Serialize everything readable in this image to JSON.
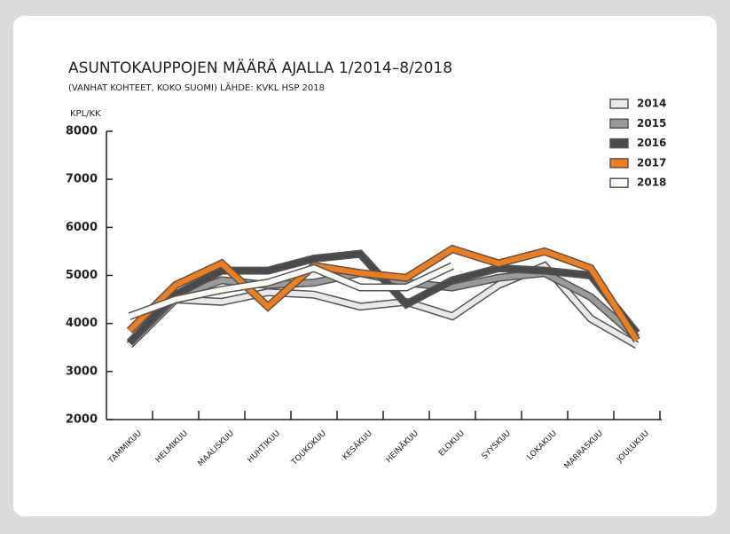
{
  "chart_data": {
    "type": "line",
    "title": "ASUNTOKAUPPOJEN MÄÄRÄ AJALLA 1/2014–8/2018",
    "subtitle": "(VANHAT KOHTEET, KOKO SUOMI) LÄHDE: KVKL HSP 2018",
    "y_label": "KPL/KK",
    "categories": [
      "TAMMIKUU",
      "HELMIKUU",
      "MAALISKUU",
      "HUHTIKUU",
      "TOUKOKUU",
      "KESÄKUU",
      "HEINÄKUU",
      "ELOKUU",
      "SYYSKUU",
      "LOKAKUU",
      "MARRASKUU",
      "JOULUKUU"
    ],
    "series": [
      {
        "name": "2014",
        "color": "#e9e9e9",
        "values": [
          3550,
          4500,
          4450,
          4650,
          4600,
          4350,
          4450,
          4150,
          4800,
          5200,
          4100,
          3550
        ]
      },
      {
        "name": "2015",
        "color": "#9a9a9a",
        "values": [
          3600,
          4550,
          4900,
          4800,
          4850,
          5050,
          4850,
          4750,
          4950,
          5050,
          4550,
          3700
        ]
      },
      {
        "name": "2016",
        "color": "#4a4a4a",
        "values": [
          3600,
          4600,
          5100,
          5100,
          5350,
          5450,
          4400,
          4900,
          5150,
          5100,
          5000,
          3800
        ]
      },
      {
        "name": "2017",
        "color": "#f07d1a",
        "values": [
          3850,
          4800,
          5250,
          4350,
          5200,
          5050,
          4950,
          5550,
          5250,
          5500,
          5150,
          3650
        ]
      },
      {
        "name": "2018",
        "color": "#fbfbf3",
        "values": [
          4150,
          4500,
          4700,
          4850,
          5150,
          4750,
          4750,
          5200,
          null,
          null,
          null,
          null
        ]
      }
    ],
    "ylim": [
      2000,
      8000
    ],
    "yticks": [
      2000,
      3000,
      4000,
      5000,
      6000,
      7000,
      8000
    ],
    "grid": false,
    "legend": "top-right"
  }
}
